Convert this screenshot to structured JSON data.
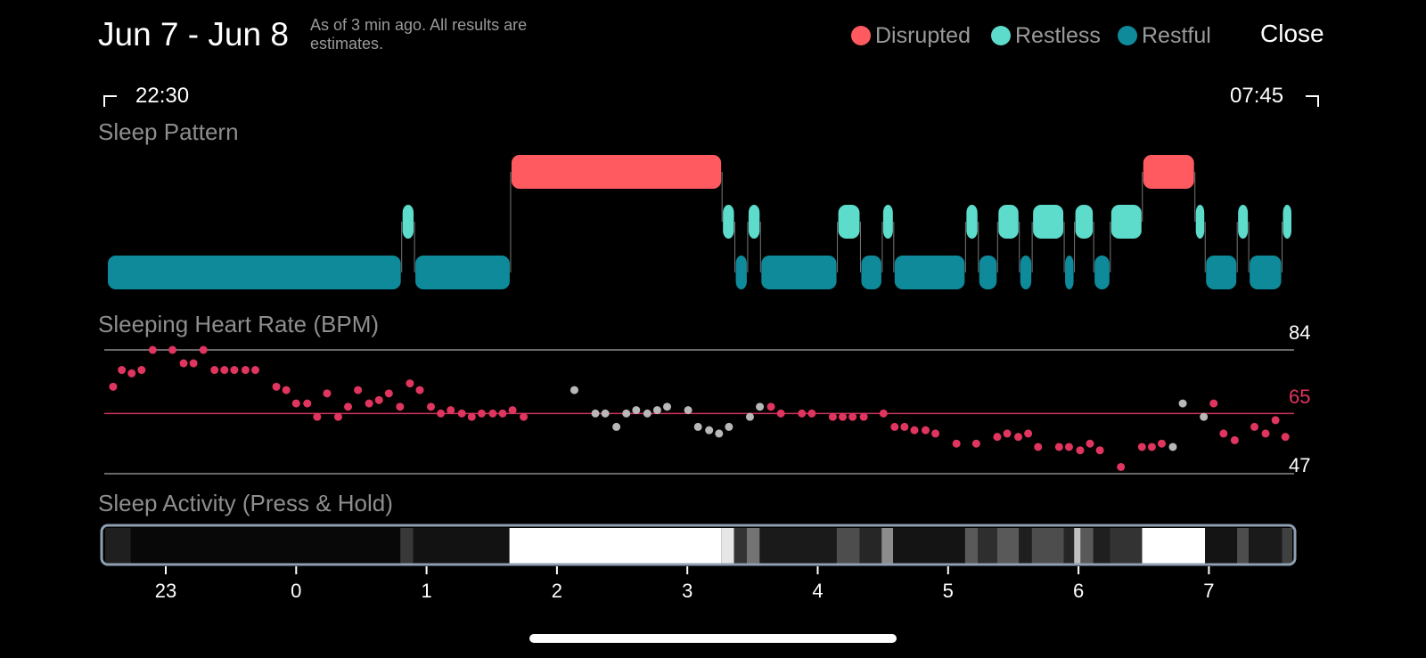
{
  "header": {
    "title": "Jun 7 - Jun 8",
    "note": "As of 3 min ago. All results are estimates.",
    "close_label": "Close"
  },
  "legend": [
    {
      "label": "Disrupted",
      "color": "#ff5a5f"
    },
    {
      "label": "Restless",
      "color": "#5ddbcb"
    },
    {
      "label": "Restful",
      "color": "#0e8a9a"
    }
  ],
  "timeline": {
    "start_label": "22:30",
    "end_label": "07:45",
    "start_hour": 22.5,
    "end_hour": 31.75
  },
  "sleep_pattern": {
    "title": "Sleep Pattern",
    "segments": [
      {
        "stage": "restful",
        "start": 22.5,
        "end": 24.8
      },
      {
        "stage": "restless",
        "start": 24.8,
        "end": 24.9
      },
      {
        "stage": "restful",
        "start": 24.9,
        "end": 25.65
      },
      {
        "stage": "disrupted",
        "start": 25.65,
        "end": 27.3
      },
      {
        "stage": "restless",
        "start": 27.3,
        "end": 27.4
      },
      {
        "stage": "restful",
        "start": 27.4,
        "end": 27.5
      },
      {
        "stage": "restless",
        "start": 27.5,
        "end": 27.6
      },
      {
        "stage": "restful",
        "start": 27.6,
        "end": 28.2
      },
      {
        "stage": "restless",
        "start": 28.2,
        "end": 28.38
      },
      {
        "stage": "restful",
        "start": 28.38,
        "end": 28.55
      },
      {
        "stage": "restless",
        "start": 28.55,
        "end": 28.64
      },
      {
        "stage": "restful",
        "start": 28.64,
        "end": 29.2
      },
      {
        "stage": "restless",
        "start": 29.2,
        "end": 29.3
      },
      {
        "stage": "restful",
        "start": 29.3,
        "end": 29.45
      },
      {
        "stage": "restless",
        "start": 29.45,
        "end": 29.62
      },
      {
        "stage": "restful",
        "start": 29.62,
        "end": 29.72
      },
      {
        "stage": "restless",
        "start": 29.72,
        "end": 29.97
      },
      {
        "stage": "restful",
        "start": 29.97,
        "end": 30.05
      },
      {
        "stage": "restless",
        "start": 30.05,
        "end": 30.2
      },
      {
        "stage": "restful",
        "start": 30.2,
        "end": 30.33
      },
      {
        "stage": "restless",
        "start": 30.33,
        "end": 30.58
      },
      {
        "stage": "disrupted",
        "start": 30.58,
        "end": 30.99
      },
      {
        "stage": "restless",
        "start": 30.99,
        "end": 31.07
      },
      {
        "stage": "restful",
        "start": 31.07,
        "end": 31.32
      },
      {
        "stage": "restless",
        "start": 31.32,
        "end": 31.41
      },
      {
        "stage": "restful",
        "start": 31.41,
        "end": 31.67
      },
      {
        "stage": "restless",
        "start": 31.67,
        "end": 31.75
      }
    ]
  },
  "heart_rate": {
    "title": "Sleeping Heart Rate (BPM)",
    "max": 84,
    "avg": 65,
    "min": 47,
    "colors": {
      "normal": "#e0355f",
      "estimated": "#b8b8b8",
      "avg_line": "#c8335a",
      "axis_line": "#8a8a8a"
    },
    "points": [
      [
        22.55,
        73,
        0
      ],
      [
        22.62,
        78,
        0
      ],
      [
        22.7,
        77,
        0
      ],
      [
        22.78,
        78,
        0
      ],
      [
        22.87,
        84,
        0
      ],
      [
        23.03,
        84,
        0
      ],
      [
        23.12,
        80,
        0
      ],
      [
        23.2,
        80,
        0
      ],
      [
        23.28,
        84,
        0
      ],
      [
        23.37,
        78,
        0
      ],
      [
        23.45,
        78,
        0
      ],
      [
        23.53,
        78,
        0
      ],
      [
        23.62,
        78,
        0
      ],
      [
        23.7,
        78,
        0
      ],
      [
        23.87,
        73,
        0
      ],
      [
        23.95,
        72,
        0
      ],
      [
        24.03,
        68,
        0
      ],
      [
        24.12,
        68,
        0
      ],
      [
        24.2,
        64,
        0
      ],
      [
        24.28,
        71,
        0
      ],
      [
        24.37,
        64,
        0
      ],
      [
        24.45,
        67,
        0
      ],
      [
        24.53,
        72,
        0
      ],
      [
        24.62,
        68,
        0
      ],
      [
        24.7,
        69,
        0
      ],
      [
        24.78,
        71,
        0
      ],
      [
        24.87,
        67,
        0
      ],
      [
        24.95,
        74,
        0
      ],
      [
        25.03,
        72,
        0
      ],
      [
        25.12,
        67,
        0
      ],
      [
        25.2,
        65,
        0
      ],
      [
        25.28,
        66,
        0
      ],
      [
        25.37,
        65,
        0
      ],
      [
        25.45,
        64,
        0
      ],
      [
        25.53,
        65,
        0
      ],
      [
        25.62,
        65,
        0
      ],
      [
        25.7,
        65,
        0
      ],
      [
        25.78,
        66,
        0
      ],
      [
        25.87,
        64,
        0
      ],
      [
        26.28,
        72,
        1
      ],
      [
        26.45,
        65,
        1
      ],
      [
        26.53,
        65,
        1
      ],
      [
        26.62,
        61,
        1
      ],
      [
        26.7,
        65,
        1
      ],
      [
        26.78,
        66,
        1
      ],
      [
        26.87,
        65,
        1
      ],
      [
        26.95,
        66,
        1
      ],
      [
        27.03,
        67,
        1
      ],
      [
        27.2,
        66,
        1
      ],
      [
        27.28,
        61,
        1
      ],
      [
        27.37,
        60,
        1
      ],
      [
        27.45,
        59,
        1
      ],
      [
        27.53,
        61,
        1
      ],
      [
        27.7,
        64,
        1
      ],
      [
        27.78,
        67,
        1
      ],
      [
        27.87,
        67,
        0
      ],
      [
        27.95,
        65,
        0
      ],
      [
        28.12,
        65,
        0
      ],
      [
        28.2,
        65,
        0
      ],
      [
        28.37,
        64,
        0
      ],
      [
        28.45,
        64,
        0
      ],
      [
        28.53,
        64,
        0
      ],
      [
        28.62,
        64,
        0
      ],
      [
        28.78,
        65,
        0
      ],
      [
        28.87,
        61,
        0
      ],
      [
        28.95,
        61,
        0
      ],
      [
        29.03,
        60,
        0
      ],
      [
        29.12,
        60,
        0
      ],
      [
        29.2,
        59,
        0
      ],
      [
        29.37,
        56,
        0
      ],
      [
        29.53,
        56,
        0
      ],
      [
        29.7,
        58,
        0
      ],
      [
        29.78,
        59,
        0
      ],
      [
        29.87,
        58,
        0
      ],
      [
        29.95,
        59,
        0
      ],
      [
        30.03,
        55,
        0
      ],
      [
        30.2,
        55,
        0
      ],
      [
        30.28,
        55,
        0
      ],
      [
        30.37,
        54,
        0
      ],
      [
        30.45,
        56,
        0
      ],
      [
        30.53,
        54,
        0
      ],
      [
        30.7,
        49,
        0
      ],
      [
        30.87,
        55,
        0
      ],
      [
        30.95,
        55,
        0
      ],
      [
        31.03,
        56,
        0
      ],
      [
        31.12,
        55,
        1
      ],
      [
        31.2,
        68,
        1
      ],
      [
        31.37,
        64,
        1
      ],
      [
        31.45,
        68,
        0
      ],
      [
        31.53,
        59,
        0
      ],
      [
        31.62,
        57,
        0
      ],
      [
        31.78,
        61,
        0
      ],
      [
        31.87,
        59,
        0
      ],
      [
        31.95,
        63,
        0
      ],
      [
        32.03,
        58,
        0
      ]
    ]
  },
  "sleep_activity": {
    "title": "Sleep Activity (Press & Hold)",
    "intensity": [
      {
        "start": 22.5,
        "end": 22.7,
        "level": 0.12
      },
      {
        "start": 22.7,
        "end": 24.8,
        "level": 0.03
      },
      {
        "start": 24.8,
        "end": 24.9,
        "level": 0.22
      },
      {
        "start": 24.9,
        "end": 25.65,
        "level": 0.07
      },
      {
        "start": 25.65,
        "end": 27.3,
        "level": 1.0
      },
      {
        "start": 27.3,
        "end": 27.4,
        "level": 0.9
      },
      {
        "start": 27.4,
        "end": 27.5,
        "level": 0.2
      },
      {
        "start": 27.5,
        "end": 27.6,
        "level": 0.45
      },
      {
        "start": 27.6,
        "end": 28.2,
        "level": 0.1
      },
      {
        "start": 28.2,
        "end": 28.38,
        "level": 0.3
      },
      {
        "start": 28.38,
        "end": 28.55,
        "level": 0.15
      },
      {
        "start": 28.55,
        "end": 28.64,
        "level": 0.55
      },
      {
        "start": 28.64,
        "end": 29.2,
        "level": 0.08
      },
      {
        "start": 29.2,
        "end": 29.3,
        "level": 0.35
      },
      {
        "start": 29.3,
        "end": 29.45,
        "level": 0.18
      },
      {
        "start": 29.45,
        "end": 29.62,
        "level": 0.35
      },
      {
        "start": 29.62,
        "end": 29.72,
        "level": 0.12
      },
      {
        "start": 29.72,
        "end": 29.97,
        "level": 0.3
      },
      {
        "start": 29.97,
        "end": 30.05,
        "level": 0.15
      },
      {
        "start": 30.05,
        "end": 30.1,
        "level": 0.75
      },
      {
        "start": 30.1,
        "end": 30.2,
        "level": 0.35
      },
      {
        "start": 30.2,
        "end": 30.33,
        "level": 0.12
      },
      {
        "start": 30.33,
        "end": 30.58,
        "level": 0.2
      },
      {
        "start": 30.58,
        "end": 31.07,
        "level": 1.0
      },
      {
        "start": 31.07,
        "end": 31.32,
        "level": 0.08
      },
      {
        "start": 31.32,
        "end": 31.41,
        "level": 0.3
      },
      {
        "start": 31.41,
        "end": 31.67,
        "level": 0.1
      },
      {
        "start": 31.67,
        "end": 31.75,
        "level": 0.25
      }
    ],
    "axis_ticks": [
      {
        "label": "23",
        "hour": 23
      },
      {
        "label": "0",
        "hour": 24
      },
      {
        "label": "1",
        "hour": 25
      },
      {
        "label": "2",
        "hour": 26
      },
      {
        "label": "3",
        "hour": 27
      },
      {
        "label": "4",
        "hour": 28
      },
      {
        "label": "5",
        "hour": 29
      },
      {
        "label": "6",
        "hour": 30
      },
      {
        "label": "7",
        "hour": 31
      }
    ]
  },
  "theme": {
    "background": "#000000",
    "text": "#ffffff",
    "muted": "#8e8e8e",
    "frame": "#8ea0b2"
  }
}
